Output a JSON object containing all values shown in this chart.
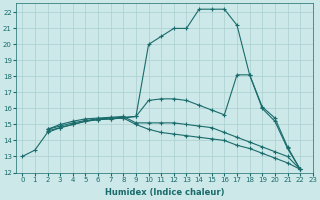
{
  "xlabel": "Humidex (Indice chaleur)",
  "background_color": "#cce8e8",
  "grid_color": "#aacfcf",
  "line_color": "#1a6b6b",
  "xlim": [
    -0.5,
    23
  ],
  "ylim": [
    12,
    22.6
  ],
  "yticks": [
    12,
    13,
    14,
    15,
    16,
    17,
    18,
    19,
    20,
    21,
    22
  ],
  "xticks": [
    0,
    1,
    2,
    3,
    4,
    5,
    6,
    7,
    8,
    9,
    10,
    11,
    12,
    13,
    14,
    15,
    16,
    17,
    18,
    19,
    20,
    21,
    22,
    23
  ],
  "series": [
    {
      "x": [
        0,
        1,
        2,
        3,
        4,
        5,
        6,
        7,
        8,
        9,
        10,
        11,
        12,
        13,
        14,
        15,
        16,
        17,
        18,
        19,
        20,
        21,
        22
      ],
      "y": [
        13.0,
        13.4,
        14.5,
        14.8,
        15.0,
        15.2,
        15.3,
        15.35,
        15.4,
        15.5,
        20.0,
        20.5,
        21.0,
        21.0,
        22.2,
        22.2,
        22.2,
        21.2,
        18.1,
        16.0,
        15.2,
        13.5,
        12.2
      ]
    },
    {
      "x": [
        2,
        3,
        4,
        5,
        6,
        7,
        8,
        9,
        10,
        11,
        12,
        13,
        14,
        15,
        16,
        17,
        18,
        19,
        20,
        21,
        22
      ],
      "y": [
        14.7,
        14.9,
        15.1,
        15.25,
        15.35,
        15.4,
        15.45,
        15.5,
        16.5,
        16.6,
        16.6,
        16.5,
        16.2,
        15.9,
        15.6,
        18.1,
        18.1,
        16.1,
        15.4,
        13.6,
        12.2
      ]
    },
    {
      "x": [
        2,
        3,
        4,
        5,
        6,
        7,
        8,
        9,
        10,
        11,
        12,
        13,
        14,
        15,
        16,
        17,
        18,
        19,
        20,
        21,
        22
      ],
      "y": [
        14.7,
        15.0,
        15.2,
        15.35,
        15.4,
        15.45,
        15.5,
        15.1,
        15.1,
        15.1,
        15.1,
        15.0,
        14.9,
        14.8,
        14.5,
        14.2,
        13.9,
        13.6,
        13.3,
        13.0,
        12.2
      ]
    },
    {
      "x": [
        2,
        3,
        4,
        5,
        6,
        7,
        8,
        9,
        10,
        11,
        12,
        13,
        14,
        15,
        16,
        17,
        18,
        19,
        20,
        21,
        22
      ],
      "y": [
        14.6,
        14.8,
        15.0,
        15.2,
        15.3,
        15.35,
        15.4,
        15.0,
        14.7,
        14.5,
        14.4,
        14.3,
        14.2,
        14.1,
        14.0,
        13.7,
        13.5,
        13.2,
        12.9,
        12.6,
        12.2
      ]
    }
  ]
}
